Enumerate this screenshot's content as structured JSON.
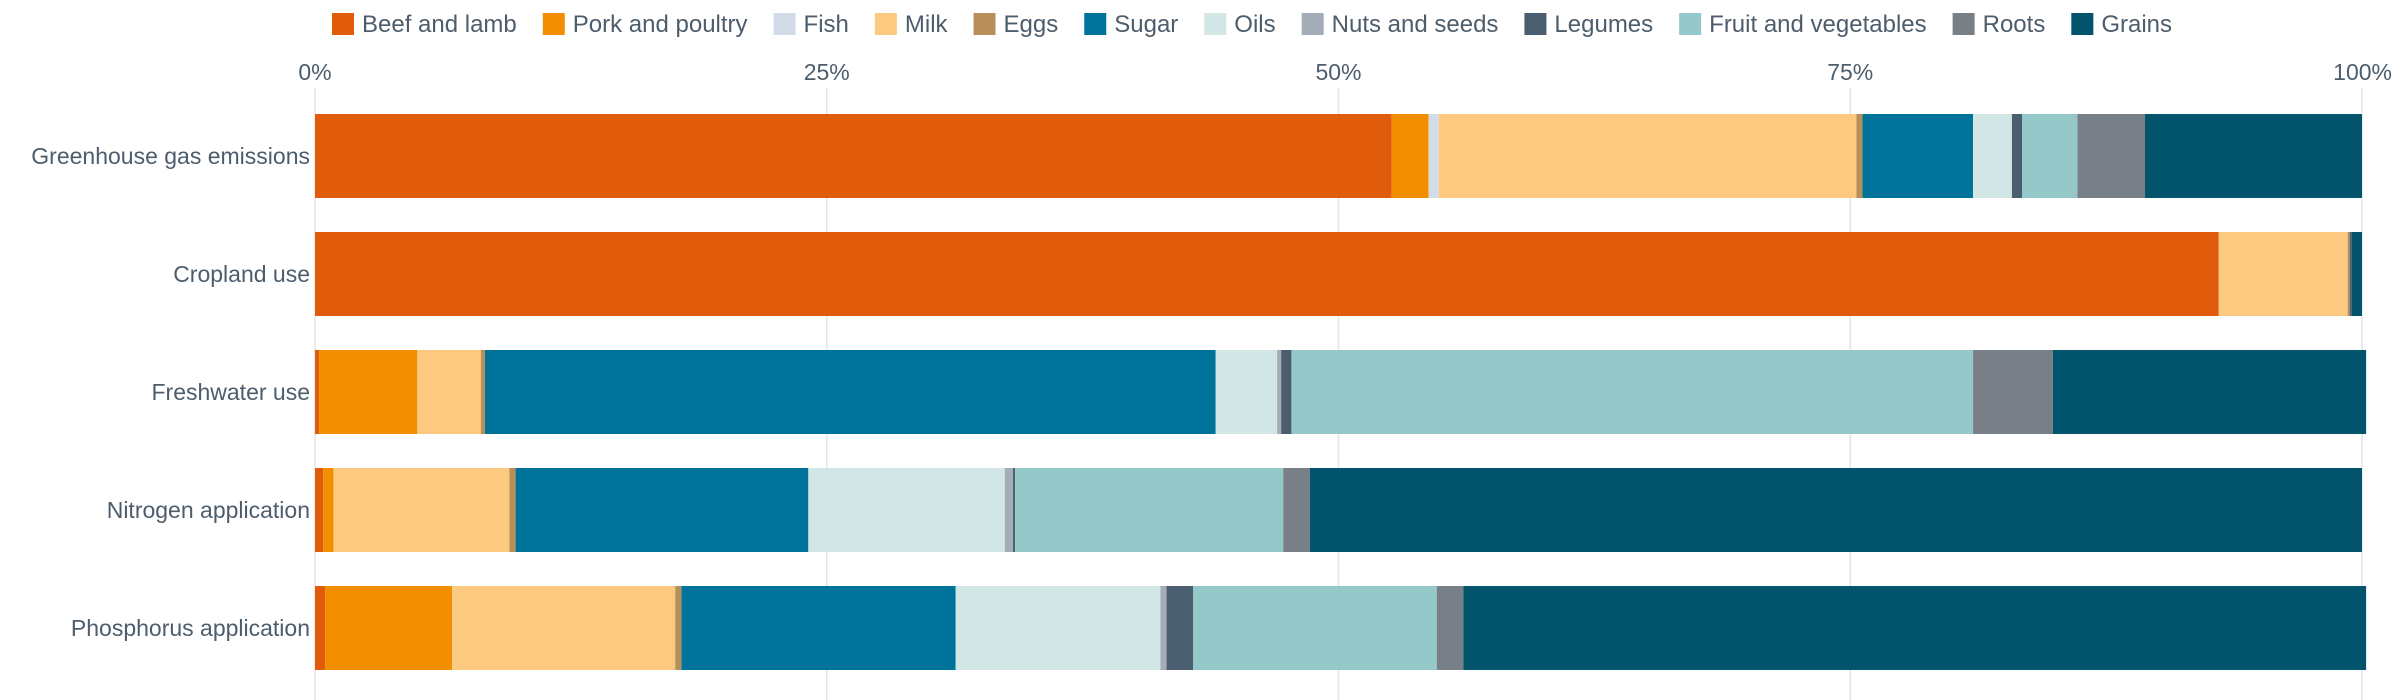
{
  "chart_data": {
    "type": "bar",
    "orientation": "horizontal",
    "stacked": true,
    "xlim": [
      0,
      100
    ],
    "x_ticks": [
      "0%",
      "25%",
      "50%",
      "75%",
      "100%"
    ],
    "grid": true,
    "legend_position": "top",
    "categories": [
      "Greenhouse gas emissions",
      "Cropland use",
      "Freshwater use",
      "Nitrogen application",
      "Phosphorus application"
    ],
    "series": [
      {
        "name": "Beef and lamb",
        "color": "#e05b0a",
        "values": [
          52.6,
          93.0,
          0.2,
          0.4,
          0.5
        ]
      },
      {
        "name": "Pork and poultry",
        "color": "#f28e00",
        "values": [
          1.8,
          0.0,
          4.8,
          0.5,
          6.2
        ]
      },
      {
        "name": "Fish",
        "color": "#d4dbe8",
        "values": [
          0.5,
          0.0,
          0.0,
          0.0,
          0.0
        ]
      },
      {
        "name": "Milk",
        "color": "#fbc97f",
        "values": [
          20.4,
          6.3,
          3.1,
          8.6,
          10.9
        ]
      },
      {
        "name": "Eggs",
        "color": "#b88f58",
        "values": [
          0.3,
          0.1,
          0.2,
          0.3,
          0.3
        ]
      },
      {
        "name": "Sugar",
        "color": "#00739a",
        "values": [
          5.4,
          0.0,
          35.7,
          14.3,
          13.4
        ]
      },
      {
        "name": "Oils",
        "color": "#d1e6e5",
        "values": [
          1.9,
          0.0,
          3.0,
          9.6,
          10.0
        ]
      },
      {
        "name": "Nuts and seeds",
        "color": "#a3acb7",
        "values": [
          0.0,
          0.0,
          0.2,
          0.4,
          0.3
        ]
      },
      {
        "name": "Legumes",
        "color": "#4a5e70",
        "values": [
          0.5,
          0.1,
          0.5,
          0.1,
          1.3
        ]
      },
      {
        "name": "Fruit and vegetables",
        "color": "#95c8c8",
        "values": [
          2.7,
          0.0,
          33.3,
          13.1,
          11.9
        ]
      },
      {
        "name": "Roots",
        "color": "#787f87",
        "values": [
          3.3,
          0.0,
          3.9,
          1.3,
          1.3
        ]
      },
      {
        "name": "Grains",
        "color": "#02536c",
        "values": [
          10.6,
          0.5,
          15.3,
          51.4,
          44.1
        ]
      }
    ]
  }
}
